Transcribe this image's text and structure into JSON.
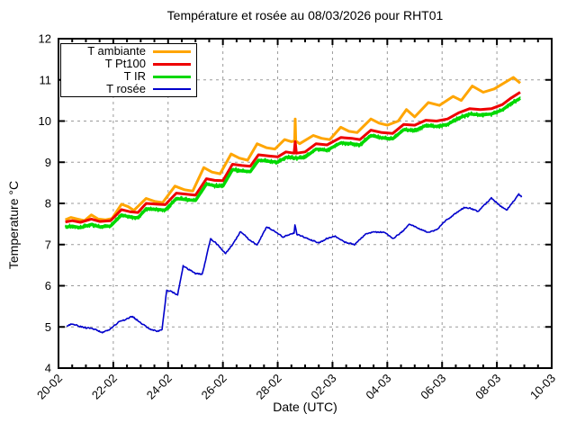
{
  "chart_data": {
    "type": "line",
    "title": "Température et rosée au 08/03/2026 pour RHT01",
    "xlabel": "Date (UTC)",
    "ylabel": "Temperature °C",
    "xlim": [
      0,
      18
    ],
    "ylim": [
      4,
      12
    ],
    "x_axis_unit": "days after 20-02 00:00 UTC",
    "x_tick_positions": [
      0,
      2,
      4,
      6,
      8,
      10,
      12,
      14,
      16,
      18
    ],
    "x_tick_labels": [
      "20-02",
      "22-02",
      "24-02",
      "26-02",
      "28-02",
      "02-03",
      "04-03",
      "06-03",
      "08-03",
      "10-03"
    ],
    "x_minor_tick_interval_days": 0.5,
    "y_ticks": [
      4,
      5,
      6,
      7,
      8,
      9,
      10,
      11,
      12
    ],
    "grid": true,
    "grid_color": "#9a9a9a",
    "legend_position": "top-left",
    "series": [
      {
        "name": "T ambiante",
        "color": "#ffa500",
        "width": 3,
        "fuzzy": false,
        "points": [
          [
            0.25,
            7.6
          ],
          [
            0.45,
            7.66
          ],
          [
            0.7,
            7.62
          ],
          [
            0.95,
            7.58
          ],
          [
            1.2,
            7.72
          ],
          [
            1.45,
            7.62
          ],
          [
            1.7,
            7.6
          ],
          [
            1.95,
            7.63
          ],
          [
            2.3,
            7.98
          ],
          [
            2.55,
            7.92
          ],
          [
            2.75,
            7.83
          ],
          [
            3.2,
            8.12
          ],
          [
            3.5,
            8.05
          ],
          [
            3.8,
            8.02
          ],
          [
            4.25,
            8.42
          ],
          [
            4.6,
            8.33
          ],
          [
            4.9,
            8.3
          ],
          [
            5.3,
            8.87
          ],
          [
            5.6,
            8.76
          ],
          [
            5.9,
            8.72
          ],
          [
            6.3,
            9.2
          ],
          [
            6.6,
            9.1
          ],
          [
            6.9,
            9.05
          ],
          [
            7.25,
            9.45
          ],
          [
            7.6,
            9.35
          ],
          [
            7.9,
            9.32
          ],
          [
            8.25,
            9.55
          ],
          [
            8.5,
            9.5
          ],
          [
            8.62,
            9.52
          ],
          [
            8.64,
            10.05
          ],
          [
            8.66,
            9.52
          ],
          [
            8.8,
            9.45
          ],
          [
            9.3,
            9.65
          ],
          [
            9.6,
            9.58
          ],
          [
            9.9,
            9.55
          ],
          [
            10.3,
            9.85
          ],
          [
            10.6,
            9.75
          ],
          [
            10.9,
            9.72
          ],
          [
            11.4,
            10.05
          ],
          [
            11.7,
            9.95
          ],
          [
            12.0,
            9.9
          ],
          [
            12.4,
            10.0
          ],
          [
            12.7,
            10.28
          ],
          [
            13.0,
            10.1
          ],
          [
            13.5,
            10.45
          ],
          [
            13.9,
            10.38
          ],
          [
            14.4,
            10.6
          ],
          [
            14.7,
            10.5
          ],
          [
            15.1,
            10.85
          ],
          [
            15.5,
            10.7
          ],
          [
            15.9,
            10.78
          ],
          [
            16.6,
            11.06
          ],
          [
            16.85,
            10.92
          ]
        ]
      },
      {
        "name": "T Pt100",
        "color": "#ee0000",
        "width": 3,
        "fuzzy": false,
        "points": [
          [
            0.25,
            7.55
          ],
          [
            0.5,
            7.58
          ],
          [
            0.8,
            7.54
          ],
          [
            1.2,
            7.62
          ],
          [
            1.5,
            7.56
          ],
          [
            1.9,
            7.58
          ],
          [
            2.3,
            7.85
          ],
          [
            2.6,
            7.8
          ],
          [
            2.9,
            7.78
          ],
          [
            3.2,
            8.0
          ],
          [
            3.6,
            7.98
          ],
          [
            3.9,
            7.97
          ],
          [
            4.3,
            8.25
          ],
          [
            4.7,
            8.22
          ],
          [
            5.0,
            8.2
          ],
          [
            5.4,
            8.6
          ],
          [
            5.7,
            8.56
          ],
          [
            6.0,
            8.55
          ],
          [
            6.35,
            8.95
          ],
          [
            6.7,
            8.92
          ],
          [
            7.0,
            8.9
          ],
          [
            7.3,
            9.18
          ],
          [
            7.7,
            9.15
          ],
          [
            8.0,
            9.13
          ],
          [
            8.3,
            9.25
          ],
          [
            8.6,
            9.22
          ],
          [
            8.64,
            9.5
          ],
          [
            8.68,
            9.22
          ],
          [
            9.0,
            9.25
          ],
          [
            9.4,
            9.45
          ],
          [
            9.8,
            9.42
          ],
          [
            10.3,
            9.6
          ],
          [
            10.7,
            9.58
          ],
          [
            11.0,
            9.55
          ],
          [
            11.4,
            9.78
          ],
          [
            11.8,
            9.72
          ],
          [
            12.2,
            9.7
          ],
          [
            12.6,
            9.92
          ],
          [
            13.0,
            9.9
          ],
          [
            13.4,
            10.02
          ],
          [
            13.8,
            10.0
          ],
          [
            14.2,
            10.05
          ],
          [
            14.6,
            10.2
          ],
          [
            15.0,
            10.3
          ],
          [
            15.4,
            10.28
          ],
          [
            15.8,
            10.3
          ],
          [
            16.2,
            10.4
          ],
          [
            16.5,
            10.55
          ],
          [
            16.85,
            10.7
          ]
        ]
      },
      {
        "name": "T IR",
        "color": "#00d800",
        "width": 3.5,
        "fuzzy": true,
        "points": [
          [
            0.25,
            7.42
          ],
          [
            0.5,
            7.45
          ],
          [
            0.8,
            7.41
          ],
          [
            1.2,
            7.49
          ],
          [
            1.5,
            7.43
          ],
          [
            1.9,
            7.45
          ],
          [
            2.3,
            7.72
          ],
          [
            2.6,
            7.67
          ],
          [
            2.9,
            7.65
          ],
          [
            3.2,
            7.87
          ],
          [
            3.6,
            7.85
          ],
          [
            3.9,
            7.84
          ],
          [
            4.3,
            8.12
          ],
          [
            4.7,
            8.09
          ],
          [
            5.0,
            8.07
          ],
          [
            5.4,
            8.47
          ],
          [
            5.7,
            8.43
          ],
          [
            6.0,
            8.42
          ],
          [
            6.35,
            8.82
          ],
          [
            6.7,
            8.79
          ],
          [
            7.0,
            8.77
          ],
          [
            7.3,
            9.05
          ],
          [
            7.7,
            9.02
          ],
          [
            8.0,
            9.0
          ],
          [
            8.3,
            9.12
          ],
          [
            8.7,
            9.1
          ],
          [
            9.0,
            9.12
          ],
          [
            9.4,
            9.32
          ],
          [
            9.8,
            9.29
          ],
          [
            10.3,
            9.47
          ],
          [
            10.7,
            9.45
          ],
          [
            11.0,
            9.42
          ],
          [
            11.4,
            9.65
          ],
          [
            11.8,
            9.59
          ],
          [
            12.2,
            9.57
          ],
          [
            12.6,
            9.79
          ],
          [
            13.0,
            9.77
          ],
          [
            13.4,
            9.89
          ],
          [
            13.8,
            9.87
          ],
          [
            14.2,
            9.92
          ],
          [
            14.6,
            10.07
          ],
          [
            15.0,
            10.17
          ],
          [
            15.4,
            10.15
          ],
          [
            15.8,
            10.17
          ],
          [
            16.2,
            10.27
          ],
          [
            16.5,
            10.42
          ],
          [
            16.85,
            10.55
          ]
        ]
      },
      {
        "name": "T rosée",
        "color": "#0000cc",
        "width": 1.6,
        "fuzzy": false,
        "points": [
          [
            0.3,
            5.02
          ],
          [
            0.5,
            5.08
          ],
          [
            0.75,
            5.02
          ],
          [
            1.0,
            4.98
          ],
          [
            1.3,
            4.95
          ],
          [
            1.6,
            4.86
          ],
          [
            1.9,
            4.95
          ],
          [
            2.2,
            5.12
          ],
          [
            2.45,
            5.18
          ],
          [
            2.7,
            5.26
          ],
          [
            2.95,
            5.12
          ],
          [
            3.3,
            4.96
          ],
          [
            3.6,
            4.9
          ],
          [
            3.78,
            4.93
          ],
          [
            3.95,
            5.9
          ],
          [
            4.15,
            5.85
          ],
          [
            4.35,
            5.78
          ],
          [
            4.55,
            6.48
          ],
          [
            4.75,
            6.4
          ],
          [
            5.0,
            6.3
          ],
          [
            5.25,
            6.28
          ],
          [
            5.55,
            7.15
          ],
          [
            5.8,
            7.0
          ],
          [
            6.1,
            6.78
          ],
          [
            6.4,
            7.05
          ],
          [
            6.65,
            7.32
          ],
          [
            6.95,
            7.12
          ],
          [
            7.25,
            7.0
          ],
          [
            7.6,
            7.43
          ],
          [
            7.9,
            7.32
          ],
          [
            8.2,
            7.18
          ],
          [
            8.45,
            7.25
          ],
          [
            8.6,
            7.28
          ],
          [
            8.63,
            7.48
          ],
          [
            8.7,
            7.25
          ],
          [
            9.0,
            7.17
          ],
          [
            9.5,
            7.04
          ],
          [
            9.8,
            7.15
          ],
          [
            10.1,
            7.2
          ],
          [
            10.45,
            7.06
          ],
          [
            10.8,
            7.0
          ],
          [
            11.2,
            7.25
          ],
          [
            11.5,
            7.3
          ],
          [
            11.9,
            7.3
          ],
          [
            12.2,
            7.14
          ],
          [
            12.55,
            7.32
          ],
          [
            12.8,
            7.5
          ],
          [
            13.1,
            7.4
          ],
          [
            13.5,
            7.3
          ],
          [
            13.8,
            7.36
          ],
          [
            14.1,
            7.56
          ],
          [
            14.5,
            7.76
          ],
          [
            14.8,
            7.9
          ],
          [
            15.05,
            7.88
          ],
          [
            15.3,
            7.8
          ],
          [
            15.8,
            8.13
          ],
          [
            16.1,
            7.95
          ],
          [
            16.35,
            7.83
          ],
          [
            16.8,
            8.22
          ],
          [
            16.9,
            8.16
          ]
        ]
      }
    ]
  }
}
